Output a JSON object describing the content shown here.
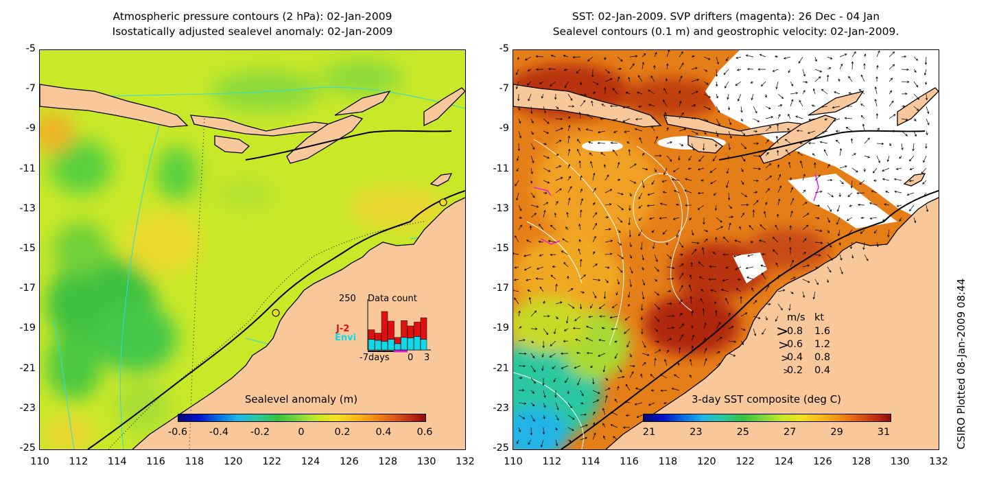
{
  "left_panel": {
    "title_line1": "Atmospheric pressure contours (2 hPa): 02-Jan-2009",
    "title_line2": "Isostatically adjusted sealevel anomaly: 02-Jan-2009",
    "colorbar_title": "Sealevel anomaly (m)",
    "colorbar_ticks": [
      "-0.6",
      "-0.4",
      "-0.2",
      "0",
      "0.2",
      "0.4",
      "0.6"
    ],
    "inset": {
      "max_label": "250",
      "title": "Data count",
      "satellite1": "J-2",
      "satellite2": "Envi",
      "satellite1_color": "#e01010",
      "satellite2_color": "#10d8e8",
      "x_labels": [
        "-7days",
        "0",
        "3"
      ],
      "bars_j2": [
        0.2,
        0.15,
        0.62,
        0.38,
        0.13,
        0.35,
        0.25,
        0.3,
        0.45
      ],
      "bars_envi": [
        0.22,
        0.2,
        0.18,
        0.22,
        0.13,
        0.26,
        0.25,
        0.28,
        0.22
      ]
    }
  },
  "right_panel": {
    "title_line1": "SST: 02-Jan-2009. SVP drifters (magenta): 26 Dec - 04 Jan",
    "title_line2": "Sealevel contours (0.1 m) and geostrophic velocity: 02-Jan-2009.",
    "colorbar_title": "3-day SST composite (deg C)",
    "colorbar_ticks": [
      "21",
      "23",
      "25",
      "27",
      "29",
      "31"
    ],
    "velocity_legend": {
      "header_ms": "m/s",
      "header_kt": "kt",
      "rows": [
        {
          "ms": "0.8",
          "kt": "1.6"
        },
        {
          "ms": "0.6",
          "kt": "1.2"
        },
        {
          "ms": "0.4",
          "kt": "0.8"
        },
        {
          "ms": "0.2",
          "kt": "0.4"
        }
      ]
    }
  },
  "y_ticks": [
    "-5",
    "-7",
    "-9",
    "-11",
    "-13",
    "-15",
    "-17",
    "-19",
    "-21",
    "-23",
    "-25"
  ],
  "x_ticks": [
    "110",
    "112",
    "114",
    "116",
    "118",
    "120",
    "122",
    "124",
    "126",
    "128",
    "130",
    "132"
  ],
  "credit": "CSIRO Plotted 08-Jan-2009 08:44",
  "colors": {
    "land": "#f9c89a",
    "ocean_anomaly_base": "#c8e828",
    "ocean_anomaly_low": "#5ad03c",
    "ocean_anomaly_high": "#f0c020",
    "sst_warm": "#e07818",
    "sst_hot": "#b02808",
    "sst_cool": "#2cc7a0"
  }
}
